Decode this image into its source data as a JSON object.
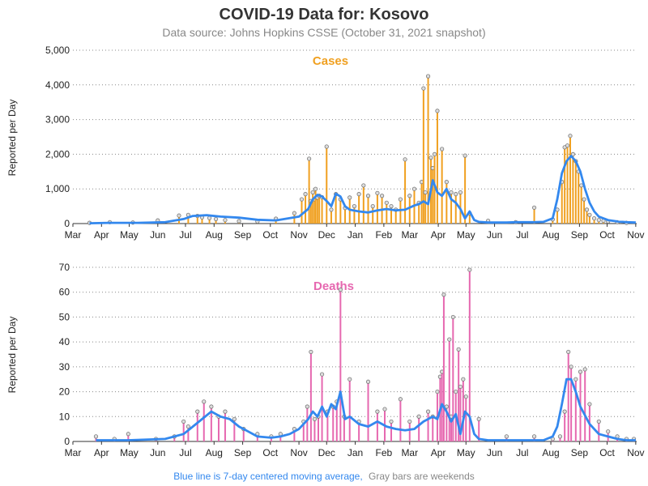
{
  "header": {
    "title": "COVID-19 Data for: Kosovo",
    "subtitle": "Data source: Johns Hopkins CSSE (October 31, 2021 snapshot)"
  },
  "footer": {
    "blue_note": "Blue line is 7-day centered moving average,",
    "gray_note": "Gray bars are weekends"
  },
  "colors": {
    "cases": "#f0a020",
    "deaths": "#e668b0",
    "moving_average": "#3388ee",
    "weekend": "#888888",
    "title": "#333333"
  },
  "chart_data": [
    {
      "type": "bar",
      "title": "Cases",
      "xlabel": "",
      "ylabel": "Reported per Day",
      "ylim": [
        0,
        5000
      ],
      "yticks": [
        0,
        1000,
        2000,
        3000,
        4000,
        5000
      ],
      "ytick_labels": [
        "0",
        "1,000",
        "2,000",
        "3,000",
        "4,000",
        "5,000"
      ],
      "grid": true,
      "x_range_days": [
        0,
        611
      ],
      "xtick_days": [
        0,
        31,
        61,
        92,
        122,
        153,
        184,
        214,
        245,
        275,
        306,
        337,
        365,
        396,
        426,
        457,
        487,
        518,
        549,
        579,
        610
      ],
      "xtick_labels": [
        "Mar",
        "Apr",
        "May",
        "Jun",
        "Jul",
        "Aug",
        "Sep",
        "Oct",
        "Nov",
        "Dec",
        "Jan",
        "Feb",
        "Mar",
        "Apr",
        "May",
        "Jun",
        "Jul",
        "Aug",
        "Sep",
        "Oct",
        "Nov"
      ],
      "series": [
        {
          "name": "Reported per Day",
          "bar_days": [
            18,
            40,
            65,
            92,
            115,
            125,
            135,
            140,
            148,
            155,
            165,
            180,
            200,
            220,
            240,
            248,
            252,
            256,
            258,
            260,
            262,
            263,
            265,
            267,
            270,
            275,
            280,
            285,
            290,
            295,
            300,
            305,
            310,
            315,
            320,
            325,
            330,
            335,
            340,
            345,
            350,
            355,
            360,
            365,
            370,
            375,
            378,
            380,
            382,
            385,
            388,
            390,
            392,
            395,
            400,
            405,
            410,
            415,
            420,
            425,
            430,
            450,
            480,
            500,
            520,
            525,
            530,
            533,
            536,
            539,
            542,
            545,
            548,
            551,
            554,
            557,
            560,
            565,
            570,
            575,
            580,
            590,
            600
          ],
          "bar_values": [
            20,
            40,
            30,
            90,
            230,
            250,
            220,
            180,
            160,
            130,
            100,
            70,
            60,
            140,
            300,
            700,
            850,
            1870,
            650,
            900,
            700,
            1000,
            750,
            800,
            760,
            2220,
            400,
            850,
            700,
            450,
            750,
            500,
            850,
            1100,
            800,
            500,
            880,
            800,
            600,
            500,
            400,
            700,
            1850,
            800,
            1000,
            600,
            1200,
            3900,
            900,
            4250,
            1900,
            1600,
            2000,
            3250,
            2150,
            1200,
            900,
            850,
            900,
            1960,
            300,
            80,
            40,
            460,
            120,
            400,
            1200,
            2200,
            2250,
            2530,
            2000,
            1800,
            1500,
            1100,
            700,
            400,
            250,
            150,
            100,
            80,
            60,
            40,
            20
          ]
        },
        {
          "name": "7-day moving average",
          "x_days": [
            18,
            40,
            70,
            100,
            120,
            130,
            145,
            160,
            180,
            200,
            220,
            245,
            255,
            260,
            265,
            270,
            275,
            280,
            285,
            290,
            295,
            300,
            310,
            320,
            330,
            340,
            350,
            360,
            370,
            375,
            380,
            385,
            390,
            395,
            400,
            405,
            410,
            415,
            420,
            425,
            430,
            435,
            440,
            450,
            460,
            470,
            480,
            500,
            510,
            520,
            525,
            530,
            535,
            540,
            545,
            550,
            555,
            560,
            565,
            570,
            580,
            590,
            600,
            610
          ],
          "values": [
            10,
            20,
            20,
            40,
            130,
            220,
            240,
            200,
            170,
            110,
            90,
            200,
            420,
            700,
            830,
            780,
            650,
            500,
            860,
            780,
            500,
            400,
            350,
            320,
            380,
            420,
            380,
            400,
            520,
            560,
            640,
            560,
            1250,
            900,
            800,
            1000,
            700,
            600,
            420,
            150,
            350,
            100,
            50,
            30,
            30,
            30,
            40,
            40,
            50,
            150,
            700,
            1450,
            1800,
            1950,
            1800,
            1500,
            1000,
            600,
            350,
            200,
            100,
            60,
            40,
            30
          ]
        }
      ]
    },
    {
      "type": "bar",
      "title": "Deaths",
      "xlabel": "",
      "ylabel": "Reported per Day",
      "ylim": [
        0,
        70
      ],
      "yticks": [
        0,
        10,
        20,
        30,
        40,
        50,
        60,
        70
      ],
      "ytick_labels": [
        "0",
        "10",
        "20",
        "30",
        "40",
        "50",
        "60",
        "70"
      ],
      "grid": true,
      "x_range_days": [
        0,
        611
      ],
      "xtick_days": [
        0,
        31,
        61,
        92,
        122,
        153,
        184,
        214,
        245,
        275,
        306,
        337,
        365,
        396,
        426,
        457,
        487,
        518,
        549,
        579,
        610
      ],
      "xtick_labels": [
        "Mar",
        "Apr",
        "May",
        "Jun",
        "Jul",
        "Aug",
        "Sep",
        "Oct",
        "Nov",
        "Dec",
        "Jan",
        "Feb",
        "Mar",
        "Apr",
        "May",
        "Jun",
        "Jul",
        "Aug",
        "Sep",
        "Oct",
        "Nov"
      ],
      "series": [
        {
          "name": "Reported per Day",
          "bar_days": [
            25,
            45,
            60,
            90,
            110,
            120,
            125,
            135,
            142,
            150,
            158,
            165,
            175,
            185,
            200,
            215,
            225,
            240,
            250,
            254,
            258,
            262,
            266,
            270,
            276,
            282,
            286,
            290,
            294,
            300,
            310,
            320,
            330,
            338,
            345,
            355,
            365,
            375,
            385,
            390,
            395,
            398,
            400,
            402,
            405,
            408,
            410,
            412,
            415,
            418,
            420,
            423,
            426,
            430,
            440,
            470,
            500,
            520,
            528,
            533,
            537,
            540,
            545,
            550,
            555,
            560,
            570,
            580,
            590,
            600,
            608
          ],
          "bar_values": [
            2,
            1,
            3,
            1,
            2,
            8,
            6,
            12,
            16,
            14,
            10,
            12,
            9,
            5,
            3,
            2,
            3,
            5,
            8,
            14,
            36,
            9,
            10,
            27,
            12,
            14,
            16,
            61,
            10,
            25,
            8,
            24,
            12,
            13,
            8,
            17,
            8,
            10,
            12,
            10,
            20,
            26,
            28,
            59,
            14,
            41,
            10,
            50,
            20,
            37,
            22,
            25,
            18,
            69,
            9,
            2,
            2,
            1,
            2,
            12,
            36,
            30,
            25,
            28,
            29,
            15,
            8,
            4,
            2,
            1,
            1
          ]
        },
        {
          "name": "7-day moving average",
          "x_days": [
            25,
            60,
            100,
            120,
            130,
            140,
            150,
            160,
            170,
            180,
            190,
            200,
            215,
            225,
            235,
            245,
            255,
            260,
            265,
            270,
            275,
            280,
            285,
            290,
            295,
            300,
            310,
            320,
            330,
            340,
            350,
            360,
            370,
            380,
            390,
            395,
            400,
            405,
            410,
            415,
            420,
            425,
            430,
            435,
            440,
            450,
            470,
            490,
            510,
            520,
            525,
            530,
            535,
            540,
            545,
            550,
            560,
            570,
            580,
            590,
            600,
            610
          ],
          "values": [
            0.5,
            0.5,
            1,
            3,
            6,
            9,
            12,
            10,
            9,
            6,
            4,
            2,
            1.5,
            2,
            3,
            5,
            9,
            12,
            10,
            14,
            10,
            15,
            13,
            20,
            9,
            10,
            7,
            6,
            8,
            6,
            5,
            4.5,
            5,
            8,
            10,
            9,
            15,
            12,
            8,
            11,
            3,
            12,
            10,
            3,
            1,
            0.5,
            0.5,
            0.5,
            0.5,
            2,
            6,
            15,
            25,
            25,
            20,
            14,
            7,
            3,
            2,
            1,
            0.5,
            0.5
          ]
        }
      ]
    }
  ]
}
